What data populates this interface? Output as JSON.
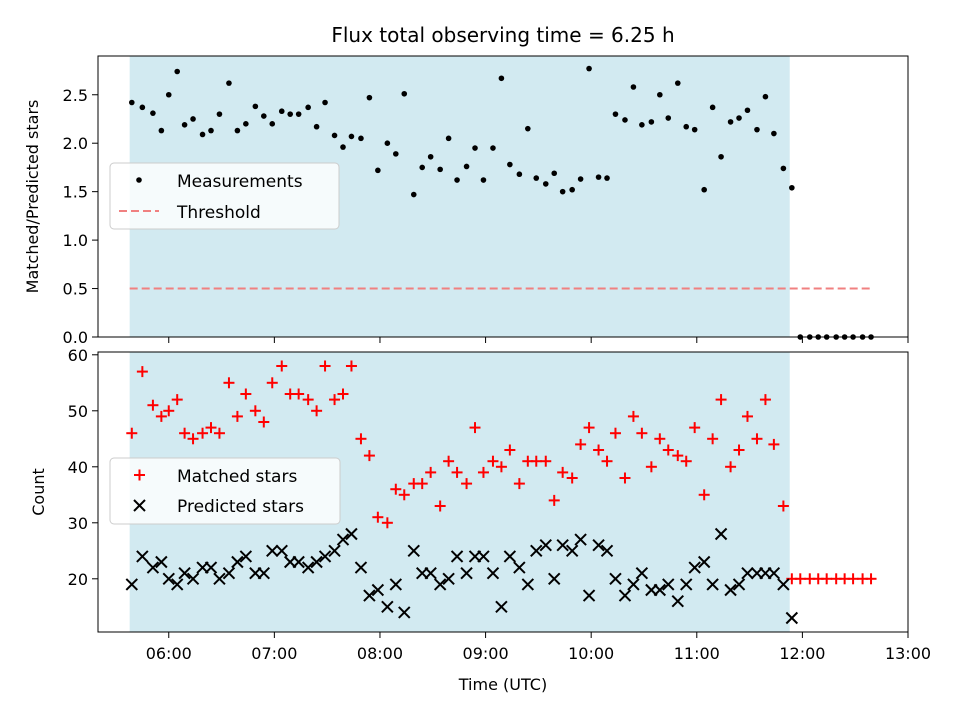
{
  "chart_data": [
    {
      "type": "scatter",
      "title": "Flux total observing time = 6.25 h",
      "ylabel": "Matched/Predicted stars",
      "xlabel": "",
      "xlim": [
        5.33,
        13.0
      ],
      "ylim": [
        0,
        2.9
      ],
      "yticks": [
        0.0,
        0.5,
        1.0,
        1.5,
        2.0,
        2.5
      ],
      "ytick_labels": [
        "0.0",
        "0.5",
        "1.0",
        "1.5",
        "2.0",
        "2.5"
      ],
      "shaded_span": [
        5.63,
        11.88
      ],
      "shade_color": "#add8e6",
      "legend_position": "center-left",
      "legend": [
        {
          "label": "Measurements",
          "marker": "dot",
          "color": "#000000"
        },
        {
          "label": "Threshold",
          "marker": "dashed-line",
          "color": "#f08080"
        }
      ],
      "threshold": {
        "value": 0.5,
        "x_range": [
          5.63,
          12.67
        ]
      },
      "series": [
        {
          "name": "Measurements",
          "color": "#000000",
          "points": [
            [
              5.65,
              2.42
            ],
            [
              5.75,
              2.37
            ],
            [
              5.85,
              2.31
            ],
            [
              5.93,
              2.13
            ],
            [
              6.0,
              2.5
            ],
            [
              6.08,
              2.74
            ],
            [
              6.15,
              2.19
            ],
            [
              6.23,
              2.25
            ],
            [
              6.32,
              2.09
            ],
            [
              6.4,
              2.13
            ],
            [
              6.48,
              2.3
            ],
            [
              6.57,
              2.62
            ],
            [
              6.65,
              2.13
            ],
            [
              6.73,
              2.2
            ],
            [
              6.82,
              2.38
            ],
            [
              6.9,
              2.28
            ],
            [
              6.98,
              2.2
            ],
            [
              7.07,
              2.33
            ],
            [
              7.15,
              2.3
            ],
            [
              7.23,
              2.3
            ],
            [
              7.32,
              2.37
            ],
            [
              7.4,
              2.17
            ],
            [
              7.48,
              2.42
            ],
            [
              7.57,
              2.08
            ],
            [
              7.65,
              1.96
            ],
            [
              7.73,
              2.07
            ],
            [
              7.82,
              2.05
            ],
            [
              7.9,
              2.47
            ],
            [
              7.98,
              1.72
            ],
            [
              8.07,
              2.0
            ],
            [
              8.15,
              1.89
            ],
            [
              8.23,
              2.51
            ],
            [
              8.32,
              1.47
            ],
            [
              8.4,
              1.75
            ],
            [
              8.48,
              1.86
            ],
            [
              8.57,
              1.73
            ],
            [
              8.65,
              2.05
            ],
            [
              8.73,
              1.62
            ],
            [
              8.82,
              1.76
            ],
            [
              8.9,
              1.95
            ],
            [
              8.98,
              1.62
            ],
            [
              9.07,
              1.95
            ],
            [
              9.15,
              2.67
            ],
            [
              9.23,
              1.78
            ],
            [
              9.32,
              1.68
            ],
            [
              9.4,
              2.15
            ],
            [
              9.48,
              1.64
            ],
            [
              9.57,
              1.58
            ],
            [
              9.65,
              1.69
            ],
            [
              9.73,
              1.5
            ],
            [
              9.82,
              1.52
            ],
            [
              9.9,
              1.63
            ],
            [
              9.98,
              2.77
            ],
            [
              10.07,
              1.65
            ],
            [
              10.15,
              1.64
            ],
            [
              10.23,
              2.3
            ],
            [
              10.32,
              2.24
            ],
            [
              10.4,
              2.58
            ],
            [
              10.48,
              2.19
            ],
            [
              10.57,
              2.22
            ],
            [
              10.65,
              2.5
            ],
            [
              10.73,
              2.26
            ],
            [
              10.82,
              2.62
            ],
            [
              10.9,
              2.17
            ],
            [
              10.98,
              2.14
            ],
            [
              11.07,
              1.52
            ],
            [
              11.15,
              2.37
            ],
            [
              11.23,
              1.86
            ],
            [
              11.32,
              2.22
            ],
            [
              11.4,
              2.26
            ],
            [
              11.48,
              2.34
            ],
            [
              11.57,
              2.14
            ],
            [
              11.65,
              2.48
            ],
            [
              11.73,
              2.1
            ],
            [
              11.82,
              1.74
            ],
            [
              11.9,
              1.54
            ],
            [
              11.98,
              0
            ],
            [
              12.07,
              0
            ],
            [
              12.15,
              0
            ],
            [
              12.23,
              0
            ],
            [
              12.32,
              0
            ],
            [
              12.4,
              0
            ],
            [
              12.48,
              0
            ],
            [
              12.57,
              0
            ],
            [
              12.65,
              0
            ]
          ]
        }
      ]
    },
    {
      "type": "scatter",
      "title": "",
      "ylabel": "Count",
      "xlabel": "Time (UTC)",
      "xlim": [
        5.33,
        13.0
      ],
      "ylim": [
        10.5,
        60.5
      ],
      "xticks": [
        6,
        7,
        8,
        9,
        10,
        11,
        12,
        13
      ],
      "xtick_labels": [
        "06:00",
        "07:00",
        "08:00",
        "09:00",
        "10:00",
        "11:00",
        "12:00",
        "13:00"
      ],
      "yticks": [
        20,
        30,
        40,
        50,
        60
      ],
      "ytick_labels": [
        "20",
        "30",
        "40",
        "50",
        "60"
      ],
      "shaded_span": [
        5.63,
        11.88
      ],
      "shade_color": "#add8e6",
      "legend_position": "center-left",
      "legend": [
        {
          "label": "Matched stars",
          "marker": "plus",
          "color": "#ff0000"
        },
        {
          "label": "Predicted stars",
          "marker": "x",
          "color": "#000000"
        }
      ],
      "series": [
        {
          "name": "Matched stars",
          "marker": "plus",
          "color": "#ff0000",
          "points": [
            [
              5.65,
              46
            ],
            [
              5.75,
              57
            ],
            [
              5.85,
              51
            ],
            [
              5.93,
              49
            ],
            [
              6.0,
              50
            ],
            [
              6.08,
              52
            ],
            [
              6.15,
              46
            ],
            [
              6.23,
              45
            ],
            [
              6.32,
              46
            ],
            [
              6.4,
              47
            ],
            [
              6.48,
              46
            ],
            [
              6.57,
              55
            ],
            [
              6.65,
              49
            ],
            [
              6.73,
              53
            ],
            [
              6.82,
              50
            ],
            [
              6.9,
              48
            ],
            [
              6.98,
              55
            ],
            [
              7.07,
              58
            ],
            [
              7.15,
              53
            ],
            [
              7.23,
              53
            ],
            [
              7.32,
              52
            ],
            [
              7.4,
              50
            ],
            [
              7.48,
              58
            ],
            [
              7.57,
              52
            ],
            [
              7.65,
              53
            ],
            [
              7.73,
              58
            ],
            [
              7.82,
              45
            ],
            [
              7.9,
              42
            ],
            [
              7.98,
              31
            ],
            [
              8.07,
              30
            ],
            [
              8.15,
              36
            ],
            [
              8.23,
              35
            ],
            [
              8.32,
              37
            ],
            [
              8.4,
              37
            ],
            [
              8.48,
              39
            ],
            [
              8.57,
              33
            ],
            [
              8.65,
              41
            ],
            [
              8.73,
              39
            ],
            [
              8.82,
              37
            ],
            [
              8.9,
              47
            ],
            [
              8.98,
              39
            ],
            [
              9.07,
              41
            ],
            [
              9.15,
              40
            ],
            [
              9.23,
              43
            ],
            [
              9.32,
              37
            ],
            [
              9.4,
              41
            ],
            [
              9.48,
              41
            ],
            [
              9.57,
              41
            ],
            [
              9.65,
              34
            ],
            [
              9.73,
              39
            ],
            [
              9.82,
              38
            ],
            [
              9.9,
              44
            ],
            [
              9.98,
              47
            ],
            [
              10.07,
              43
            ],
            [
              10.15,
              41
            ],
            [
              10.23,
              46
            ],
            [
              10.32,
              38
            ],
            [
              10.4,
              49
            ],
            [
              10.48,
              46
            ],
            [
              10.57,
              40
            ],
            [
              10.65,
              45
            ],
            [
              10.73,
              43
            ],
            [
              10.82,
              42
            ],
            [
              10.9,
              41
            ],
            [
              10.98,
              47
            ],
            [
              11.07,
              35
            ],
            [
              11.15,
              45
            ],
            [
              11.23,
              52
            ],
            [
              11.32,
              40
            ],
            [
              11.4,
              43
            ],
            [
              11.48,
              49
            ],
            [
              11.57,
              45
            ],
            [
              11.65,
              52
            ],
            [
              11.73,
              44
            ],
            [
              11.82,
              33
            ],
            [
              11.9,
              20
            ],
            [
              11.98,
              20
            ],
            [
              12.07,
              20
            ],
            [
              12.15,
              20
            ],
            [
              12.23,
              20
            ],
            [
              12.32,
              20
            ],
            [
              12.4,
              20
            ],
            [
              12.48,
              20
            ],
            [
              12.57,
              20
            ],
            [
              12.65,
              20
            ]
          ]
        },
        {
          "name": "Predicted stars",
          "marker": "x",
          "color": "#000000",
          "points": [
            [
              5.65,
              19
            ],
            [
              5.75,
              24
            ],
            [
              5.85,
              22
            ],
            [
              5.93,
              23
            ],
            [
              6.0,
              20
            ],
            [
              6.08,
              19
            ],
            [
              6.15,
              21
            ],
            [
              6.23,
              20
            ],
            [
              6.32,
              22
            ],
            [
              6.4,
              22
            ],
            [
              6.48,
              20
            ],
            [
              6.57,
              21
            ],
            [
              6.65,
              23
            ],
            [
              6.73,
              24
            ],
            [
              6.82,
              21
            ],
            [
              6.9,
              21
            ],
            [
              6.98,
              25
            ],
            [
              7.07,
              25
            ],
            [
              7.15,
              23
            ],
            [
              7.23,
              23
            ],
            [
              7.32,
              22
            ],
            [
              7.4,
              23
            ],
            [
              7.48,
              24
            ],
            [
              7.57,
              25
            ],
            [
              7.65,
              27
            ],
            [
              7.73,
              28
            ],
            [
              7.82,
              22
            ],
            [
              7.9,
              17
            ],
            [
              7.98,
              18
            ],
            [
              8.07,
              15
            ],
            [
              8.15,
              19
            ],
            [
              8.23,
              14
            ],
            [
              8.32,
              25
            ],
            [
              8.4,
              21
            ],
            [
              8.48,
              21
            ],
            [
              8.57,
              19
            ],
            [
              8.65,
              20
            ],
            [
              8.73,
              24
            ],
            [
              8.82,
              21
            ],
            [
              8.9,
              24
            ],
            [
              8.98,
              24
            ],
            [
              9.07,
              21
            ],
            [
              9.15,
              15
            ],
            [
              9.23,
              24
            ],
            [
              9.32,
              22
            ],
            [
              9.4,
              19
            ],
            [
              9.48,
              25
            ],
            [
              9.57,
              26
            ],
            [
              9.65,
              20
            ],
            [
              9.73,
              26
            ],
            [
              9.82,
              25
            ],
            [
              9.9,
              27
            ],
            [
              9.98,
              17
            ],
            [
              10.07,
              26
            ],
            [
              10.15,
              25
            ],
            [
              10.23,
              20
            ],
            [
              10.32,
              17
            ],
            [
              10.4,
              19
            ],
            [
              10.48,
              21
            ],
            [
              10.57,
              18
            ],
            [
              10.65,
              18
            ],
            [
              10.73,
              19
            ],
            [
              10.82,
              16
            ],
            [
              10.9,
              19
            ],
            [
              10.98,
              22
            ],
            [
              11.07,
              23
            ],
            [
              11.15,
              19
            ],
            [
              11.23,
              28
            ],
            [
              11.32,
              18
            ],
            [
              11.4,
              19
            ],
            [
              11.48,
              21
            ],
            [
              11.57,
              21
            ],
            [
              11.65,
              21
            ],
            [
              11.73,
              21
            ],
            [
              11.82,
              19
            ],
            [
              11.9,
              13
            ]
          ]
        }
      ]
    }
  ]
}
